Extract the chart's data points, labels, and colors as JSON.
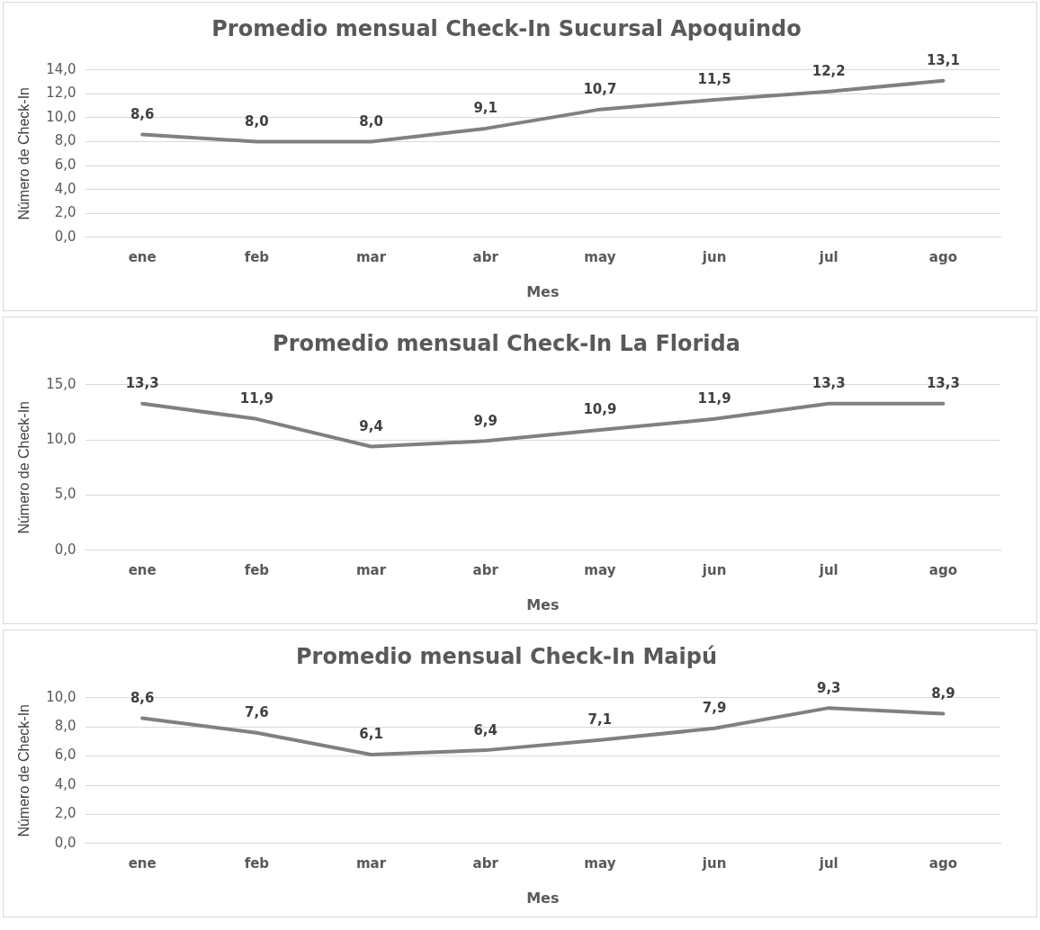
{
  "chart_data": [
    {
      "type": "line",
      "title": "Promedio mensual Check-In Sucursal Apoquindo",
      "xlabel": "Mes",
      "ylabel": "Número de Check-In",
      "categories": [
        "ene",
        "feb",
        "mar",
        "abr",
        "may",
        "jun",
        "jul",
        "ago"
      ],
      "series": [
        {
          "color": "#808080",
          "values": [
            8.6,
            8.0,
            8.0,
            9.1,
            10.7,
            11.5,
            12.2,
            13.1
          ],
          "value_labels": [
            "8,6",
            "8,0",
            "8,0",
            "9,1",
            "10,7",
            "11,5",
            "12,2",
            "13,1"
          ]
        }
      ],
      "ylim": [
        0,
        14
      ],
      "yticks": [
        {
          "value": 0,
          "label": "0,0"
        },
        {
          "value": 2,
          "label": "2,0"
        },
        {
          "value": 4,
          "label": "4,0"
        },
        {
          "value": 6,
          "label": "6,0"
        },
        {
          "value": 8,
          "label": "8,0"
        },
        {
          "value": 10,
          "label": "10,0"
        },
        {
          "value": 12,
          "label": "12,0"
        },
        {
          "value": 14,
          "label": "14,0"
        }
      ],
      "grid": "y",
      "legend": false,
      "marker": "none",
      "line_style": "solid"
    },
    {
      "type": "line",
      "title": "Promedio mensual Check-In La Florida",
      "xlabel": "Mes",
      "ylabel": "Número de Check-In",
      "categories": [
        "ene",
        "feb",
        "mar",
        "abr",
        "may",
        "jun",
        "jul",
        "ago"
      ],
      "series": [
        {
          "color": "#808080",
          "values": [
            13.3,
            11.9,
            9.4,
            9.9,
            10.9,
            11.9,
            13.3,
            13.3
          ],
          "value_labels": [
            "13,3",
            "11,9",
            "9,4",
            "9,9",
            "10,9",
            "11,9",
            "13,3",
            "13,3"
          ]
        }
      ],
      "ylim": [
        0,
        15
      ],
      "yticks": [
        {
          "value": 0,
          "label": "0,0"
        },
        {
          "value": 5,
          "label": "5,0"
        },
        {
          "value": 10,
          "label": "10,0"
        },
        {
          "value": 15,
          "label": "15,0"
        }
      ],
      "grid": "y",
      "legend": false,
      "marker": "none",
      "line_style": "solid"
    },
    {
      "type": "line",
      "title": "Promedio mensual Check-In Maipú",
      "xlabel": "Mes",
      "ylabel": "Número de Check-In",
      "categories": [
        "ene",
        "feb",
        "mar",
        "abr",
        "may",
        "jun",
        "jul",
        "ago"
      ],
      "series": [
        {
          "color": "#808080",
          "values": [
            8.6,
            7.6,
            6.1,
            6.4,
            7.1,
            7.9,
            9.3,
            8.9
          ],
          "value_labels": [
            "8,6",
            "7,6",
            "6,1",
            "6,4",
            "7,1",
            "7,9",
            "9,3",
            "8,9"
          ]
        }
      ],
      "ylim": [
        0,
        10
      ],
      "yticks": [
        {
          "value": 0,
          "label": "0,0"
        },
        {
          "value": 2,
          "label": "2,0"
        },
        {
          "value": 4,
          "label": "4,0"
        },
        {
          "value": 6,
          "label": "6,0"
        },
        {
          "value": 8,
          "label": "8,0"
        },
        {
          "value": 10,
          "label": "10,0"
        }
      ],
      "grid": "y",
      "legend": false,
      "marker": "none",
      "line_style": "solid"
    }
  ]
}
